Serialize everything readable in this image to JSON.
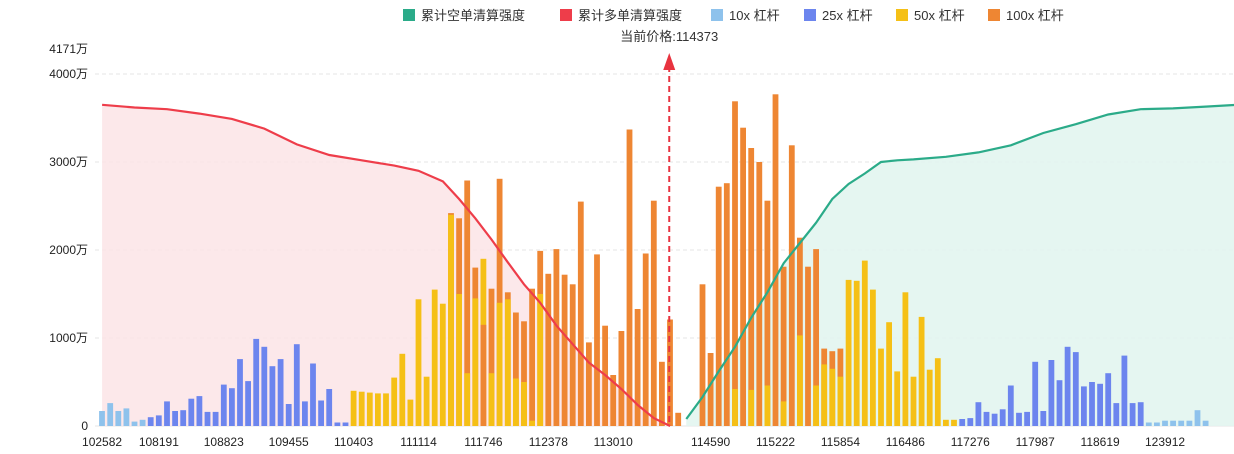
{
  "legend": [
    {
      "label": "累计空单清算强度",
      "color": "#2bab89"
    },
    {
      "label": "累计多单清算强度",
      "color": "#ee3d4a"
    },
    {
      "label": "10x 杠杆",
      "color": "#8ec2ec"
    },
    {
      "label": "25x 杠杆",
      "color": "#6c85ee"
    },
    {
      "label": "50x 杠杆",
      "color": "#f5c016"
    },
    {
      "label": "100x 杠杆",
      "color": "#ee8633"
    }
  ],
  "current_price_label": "当前价格:114373",
  "chart_data": {
    "type": "bar",
    "y_ticks": [
      "0",
      "1000万",
      "2000万",
      "3000万",
      "4000万",
      "4171万"
    ],
    "y_tick_values": [
      0,
      1000,
      2000,
      3000,
      4000,
      4171
    ],
    "y_unit": "万",
    "ylim": [
      0,
      4171
    ],
    "x_tick_labels": [
      "102582",
      "108191",
      "108823",
      "109455",
      "110403",
      "111114",
      "111746",
      "112378",
      "113010",
      "114590",
      "115222",
      "115854",
      "116486",
      "117276",
      "117987",
      "118619",
      "123912"
    ],
    "x_tick_bar_index": [
      0,
      7,
      15,
      23,
      31,
      39,
      47,
      55,
      63,
      75,
      83,
      91,
      99,
      107,
      115,
      123,
      131
    ],
    "current_price": 114373,
    "current_price_index": 70,
    "bar_count": 140,
    "bars": [
      [
        0,
        "10x",
        170
      ],
      [
        1,
        "10x",
        260
      ],
      [
        2,
        "10x",
        170
      ],
      [
        3,
        "10x",
        200
      ],
      [
        4,
        "10x",
        50
      ],
      [
        5,
        "10x",
        70
      ],
      [
        6,
        "25x",
        100
      ],
      [
        7,
        "25x",
        120
      ],
      [
        8,
        "25x",
        280
      ],
      [
        9,
        "25x",
        170
      ],
      [
        10,
        "25x",
        180
      ],
      [
        11,
        "25x",
        310
      ],
      [
        12,
        "25x",
        340
      ],
      [
        13,
        "25x",
        160
      ],
      [
        14,
        "25x",
        160
      ],
      [
        15,
        "25x",
        470
      ],
      [
        16,
        "25x",
        430
      ],
      [
        17,
        "25x",
        760
      ],
      [
        18,
        "25x",
        510
      ],
      [
        19,
        "25x",
        990
      ],
      [
        20,
        "25x",
        900
      ],
      [
        21,
        "25x",
        680
      ],
      [
        22,
        "25x",
        760
      ],
      [
        23,
        "25x",
        250
      ],
      [
        24,
        "25x",
        930
      ],
      [
        25,
        "25x",
        280
      ],
      [
        26,
        "25x",
        710
      ],
      [
        27,
        "25x",
        290
      ],
      [
        28,
        "25x",
        420
      ],
      [
        29,
        "25x",
        40
      ],
      [
        30,
        "25x",
        40
      ],
      [
        31,
        "50x",
        400
      ],
      [
        32,
        "50x",
        390
      ],
      [
        33,
        "50x",
        380
      ],
      [
        34,
        "50x",
        370
      ],
      [
        35,
        "50x",
        370
      ],
      [
        36,
        "50x",
        550
      ],
      [
        37,
        "50x",
        820
      ],
      [
        38,
        "50x",
        300
      ],
      [
        39,
        "50x",
        1440
      ],
      [
        40,
        "50x",
        560
      ],
      [
        41,
        "50x",
        1550
      ],
      [
        42,
        "50x",
        1390
      ],
      [
        43,
        "50x",
        2400
      ],
      [
        44,
        "50x",
        1500
      ],
      [
        45,
        "50x",
        600
      ],
      [
        46,
        "50x",
        1450
      ],
      [
        47,
        "50x",
        1900
      ],
      [
        48,
        "50x",
        600
      ],
      [
        49,
        "50x",
        1400
      ],
      [
        50,
        "50x",
        1440
      ],
      [
        51,
        "50x",
        540
      ],
      [
        52,
        "50x",
        500
      ],
      [
        53,
        "50x",
        60
      ],
      [
        54,
        "50x",
        1500
      ],
      [
        43,
        "100x",
        2420
      ],
      [
        44,
        "100x",
        2360
      ],
      [
        45,
        "100x",
        2790
      ],
      [
        46,
        "100x",
        1800
      ],
      [
        47,
        "100x",
        1150
      ],
      [
        48,
        "100x",
        1560
      ],
      [
        49,
        "100x",
        2810
      ],
      [
        50,
        "100x",
        1520
      ],
      [
        51,
        "100x",
        1290
      ],
      [
        52,
        "100x",
        1190
      ],
      [
        53,
        "100x",
        1560
      ],
      [
        54,
        "100x",
        1990
      ],
      [
        55,
        "100x",
        1730
      ],
      [
        56,
        "100x",
        2010
      ],
      [
        57,
        "100x",
        1720
      ],
      [
        58,
        "100x",
        1610
      ],
      [
        59,
        "100x",
        2550
      ],
      [
        60,
        "100x",
        950
      ],
      [
        61,
        "100x",
        1950
      ],
      [
        62,
        "100x",
        1140
      ],
      [
        63,
        "100x",
        580
      ],
      [
        64,
        "100x",
        1080
      ],
      [
        65,
        "100x",
        3370
      ],
      [
        66,
        "100x",
        1330
      ],
      [
        67,
        "100x",
        1960
      ],
      [
        68,
        "100x",
        2560
      ],
      [
        69,
        "100x",
        730
      ],
      [
        70,
        "100x",
        1210
      ],
      [
        71,
        "100x",
        150
      ],
      [
        74,
        "100x",
        1610
      ],
      [
        75,
        "100x",
        830
      ],
      [
        76,
        "100x",
        2720
      ],
      [
        77,
        "100x",
        2760
      ],
      [
        78,
        "100x",
        3690
      ],
      [
        79,
        "100x",
        3390
      ],
      [
        80,
        "100x",
        3160
      ],
      [
        81,
        "100x",
        3000
      ],
      [
        82,
        "100x",
        2560
      ],
      [
        83,
        "100x",
        3770
      ],
      [
        84,
        "100x",
        1810
      ],
      [
        85,
        "100x",
        3190
      ],
      [
        86,
        "100x",
        2140
      ],
      [
        87,
        "100x",
        1810
      ],
      [
        88,
        "100x",
        2010
      ],
      [
        89,
        "100x",
        880
      ],
      [
        90,
        "100x",
        850
      ],
      [
        91,
        "100x",
        880
      ],
      [
        78,
        "50x",
        420
      ],
      [
        80,
        "50x",
        410
      ],
      [
        82,
        "50x",
        460
      ],
      [
        84,
        "50x",
        280
      ],
      [
        86,
        "50x",
        1030
      ],
      [
        88,
        "50x",
        460
      ],
      [
        89,
        "50x",
        700
      ],
      [
        90,
        "50x",
        650
      ],
      [
        91,
        "50x",
        560
      ],
      [
        92,
        "50x",
        1660
      ],
      [
        93,
        "50x",
        1650
      ],
      [
        94,
        "50x",
        1880
      ],
      [
        95,
        "50x",
        1550
      ],
      [
        96,
        "50x",
        880
      ],
      [
        97,
        "50x",
        1180
      ],
      [
        98,
        "50x",
        620
      ],
      [
        99,
        "50x",
        1520
      ],
      [
        100,
        "50x",
        560
      ],
      [
        101,
        "50x",
        1240
      ],
      [
        102,
        "50x",
        640
      ],
      [
        103,
        "50x",
        770
      ],
      [
        104,
        "50x",
        70
      ],
      [
        105,
        "50x",
        70
      ],
      [
        106,
        "25x",
        80
      ],
      [
        107,
        "25x",
        90
      ],
      [
        108,
        "25x",
        270
      ],
      [
        109,
        "25x",
        160
      ],
      [
        110,
        "25x",
        140
      ],
      [
        111,
        "25x",
        190
      ],
      [
        112,
        "25x",
        460
      ],
      [
        113,
        "25x",
        150
      ],
      [
        114,
        "25x",
        160
      ],
      [
        115,
        "25x",
        730
      ],
      [
        116,
        "25x",
        170
      ],
      [
        117,
        "25x",
        750
      ],
      [
        118,
        "25x",
        520
      ],
      [
        119,
        "25x",
        900
      ],
      [
        120,
        "25x",
        840
      ],
      [
        121,
        "25x",
        450
      ],
      [
        122,
        "25x",
        500
      ],
      [
        123,
        "25x",
        480
      ],
      [
        124,
        "25x",
        600
      ],
      [
        125,
        "25x",
        260
      ],
      [
        126,
        "25x",
        800
      ],
      [
        127,
        "25x",
        260
      ],
      [
        128,
        "25x",
        270
      ],
      [
        129,
        "10x",
        40
      ],
      [
        130,
        "10x",
        40
      ],
      [
        131,
        "10x",
        60
      ],
      [
        132,
        "10x",
        60
      ],
      [
        133,
        "10x",
        60
      ],
      [
        134,
        "10x",
        60
      ],
      [
        135,
        "10x",
        180
      ],
      [
        136,
        "10x",
        60
      ]
    ],
    "cumulative_long": [
      [
        0,
        3650
      ],
      [
        4,
        3620
      ],
      [
        8,
        3600
      ],
      [
        12,
        3550
      ],
      [
        16,
        3490
      ],
      [
        20,
        3380
      ],
      [
        24,
        3200
      ],
      [
        28,
        3080
      ],
      [
        32,
        3020
      ],
      [
        36,
        2960
      ],
      [
        39,
        2900
      ],
      [
        42,
        2780
      ],
      [
        44,
        2580
      ],
      [
        46,
        2360
      ],
      [
        48,
        2120
      ],
      [
        50,
        1860
      ],
      [
        52,
        1610
      ],
      [
        54,
        1400
      ],
      [
        56,
        1140
      ],
      [
        58,
        930
      ],
      [
        60,
        720
      ],
      [
        62,
        580
      ],
      [
        64,
        420
      ],
      [
        66,
        240
      ],
      [
        68,
        90
      ],
      [
        70,
        0
      ]
    ],
    "cumulative_short": [
      [
        72,
        80
      ],
      [
        74,
        330
      ],
      [
        76,
        620
      ],
      [
        78,
        900
      ],
      [
        80,
        1230
      ],
      [
        82,
        1520
      ],
      [
        84,
        1850
      ],
      [
        86,
        2080
      ],
      [
        88,
        2310
      ],
      [
        90,
        2580
      ],
      [
        92,
        2750
      ],
      [
        94,
        2870
      ],
      [
        96,
        3000
      ],
      [
        98,
        3020
      ],
      [
        100,
        3030
      ],
      [
        104,
        3060
      ],
      [
        108,
        3110
      ],
      [
        112,
        3190
      ],
      [
        116,
        3330
      ],
      [
        120,
        3430
      ],
      [
        124,
        3540
      ],
      [
        128,
        3600
      ],
      [
        132,
        3610
      ],
      [
        136,
        3630
      ],
      [
        140,
        3650
      ]
    ]
  }
}
